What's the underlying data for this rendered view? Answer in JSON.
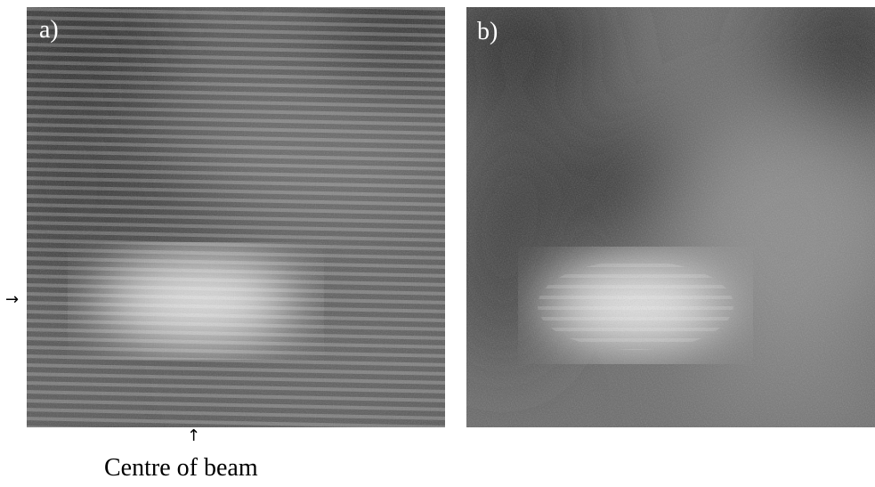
{
  "panels": [
    {
      "id": "a",
      "label": "a)"
    },
    {
      "id": "b",
      "label": "b)"
    }
  ],
  "annotations": {
    "arrow_right_glyph": "→",
    "arrow_up_glyph": "↑",
    "beam_caption": "Centre of beam"
  },
  "colors": {
    "background": "#ffffff",
    "label_text": "#ffffff"
  }
}
